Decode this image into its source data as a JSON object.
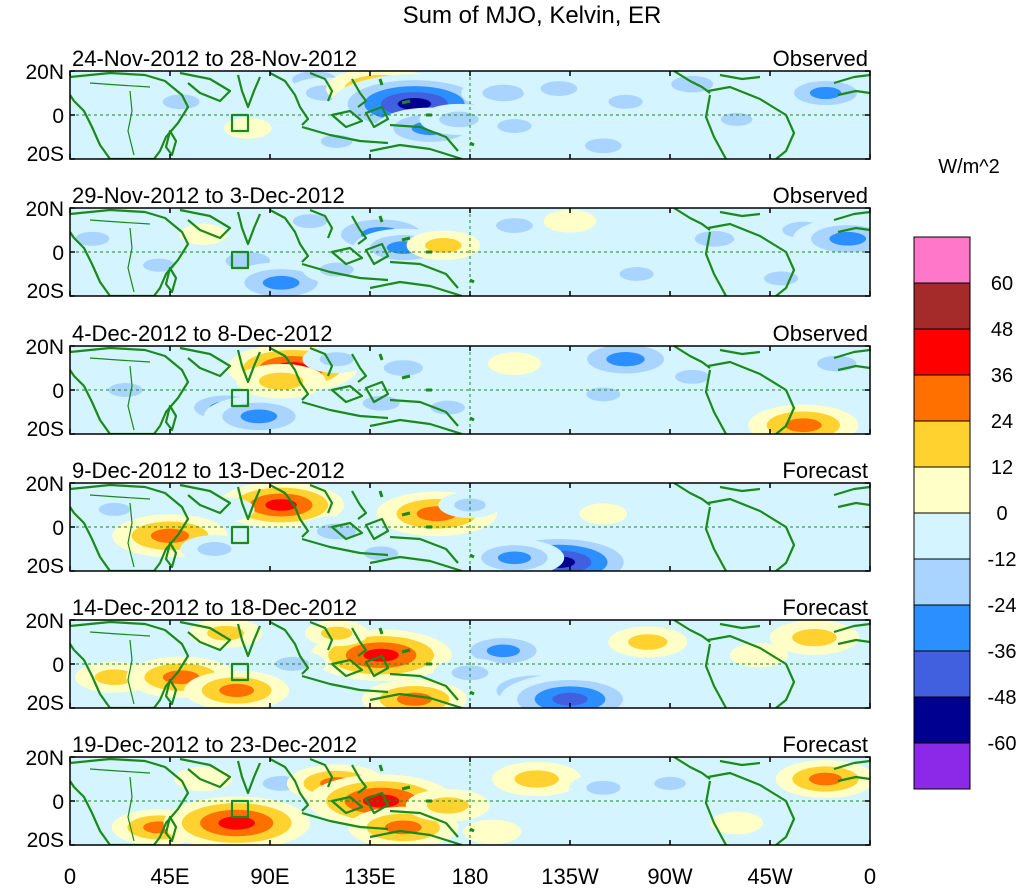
{
  "chart_data": {
    "type": "heatmap",
    "title": "Sum of MJO, Kelvin, ER",
    "units_label": "W/m^2",
    "panels": [
      {
        "period": "24-Nov-2012 to 28-Nov-2012",
        "kind": "Observed"
      },
      {
        "period": "29-Nov-2012 to 3-Dec-2012",
        "kind": "Observed"
      },
      {
        "period": "4-Dec-2012 to 8-Dec-2012",
        "kind": "Observed"
      },
      {
        "period": "9-Dec-2012 to 13-Dec-2012",
        "kind": "Forecast"
      },
      {
        "period": "14-Dec-2012 to 18-Dec-2012",
        "kind": "Forecast"
      },
      {
        "period": "19-Dec-2012 to 23-Dec-2012",
        "kind": "Forecast"
      }
    ],
    "x_ticks": [
      {
        "lon": 0,
        "label": "0"
      },
      {
        "lon": 45,
        "label": "45E"
      },
      {
        "lon": 90,
        "label": "90E"
      },
      {
        "lon": 135,
        "label": "135E"
      },
      {
        "lon": 180,
        "label": "180"
      },
      {
        "lon": 225,
        "label": "135W"
      },
      {
        "lon": 270,
        "label": "90W"
      },
      {
        "lon": 315,
        "label": "45W"
      },
      {
        "lon": 360,
        "label": "0"
      }
    ],
    "y_ticks": [
      {
        "lat": 20,
        "label": "20N"
      },
      {
        "lat": 0,
        "label": "0"
      },
      {
        "lat": -20,
        "label": "20S"
      }
    ],
    "lon_range": [
      0,
      360
    ],
    "lat_range": [
      -20,
      20
    ],
    "colorbar": {
      "labels": [
        "60",
        "48",
        "36",
        "24",
        "12",
        "0",
        "-12",
        "-24",
        "-36",
        "-48",
        "-60"
      ],
      "colors": [
        "#ff77c8",
        "#a52a2a",
        "#ff0000",
        "#ff7000",
        "#ffd230",
        "#ffffc8",
        "#d4f4ff",
        "#a8d4ff",
        "#2b8fff",
        "#4060e0",
        "#000090",
        "#8c28e8"
      ]
    },
    "fields": [
      [
        {
          "lon": 30,
          "lat": 2,
          "v": -8
        },
        {
          "lon": 50,
          "lat": 6,
          "v": -16
        },
        {
          "lon": 110,
          "lat": 16,
          "v": -22
        },
        {
          "lon": 115,
          "lat": 10,
          "v": -18
        },
        {
          "lon": 140,
          "lat": 12,
          "v": 30
        },
        {
          "lon": 155,
          "lat": 5,
          "v": -52
        },
        {
          "lon": 162,
          "lat": -6,
          "v": -30
        },
        {
          "lon": 175,
          "lat": -2,
          "v": -18
        },
        {
          "lon": 195,
          "lat": 10,
          "v": -20
        },
        {
          "lon": 220,
          "lat": 12,
          "v": -16
        },
        {
          "lon": 250,
          "lat": 6,
          "v": -14
        },
        {
          "lon": 280,
          "lat": 14,
          "v": -20
        },
        {
          "lon": 340,
          "lat": 10,
          "v": -24
        },
        {
          "lon": 80,
          "lat": -6,
          "v": 6
        },
        {
          "lon": 200,
          "lat": -5,
          "v": -14
        },
        {
          "lon": 60,
          "lat": -12,
          "v": -10
        },
        {
          "lon": 240,
          "lat": -14,
          "v": -16
        },
        {
          "lon": 300,
          "lat": -2,
          "v": -12
        },
        {
          "lon": 120,
          "lat": -12,
          "v": -12
        }
      ],
      [
        {
          "lon": 10,
          "lat": 6,
          "v": -14
        },
        {
          "lon": 40,
          "lat": -6,
          "v": -12
        },
        {
          "lon": 80,
          "lat": -4,
          "v": -22
        },
        {
          "lon": 95,
          "lat": -14,
          "v": -30
        },
        {
          "lon": 108,
          "lat": 14,
          "v": -14
        },
        {
          "lon": 140,
          "lat": 8,
          "v": -34
        },
        {
          "lon": 150,
          "lat": 2,
          "v": -26
        },
        {
          "lon": 168,
          "lat": 3,
          "v": 16
        },
        {
          "lon": 200,
          "lat": 12,
          "v": -16
        },
        {
          "lon": 225,
          "lat": 14,
          "v": 8
        },
        {
          "lon": 255,
          "lat": -10,
          "v": -14
        },
        {
          "lon": 290,
          "lat": 6,
          "v": -18
        },
        {
          "lon": 330,
          "lat": 10,
          "v": -20
        },
        {
          "lon": 350,
          "lat": 6,
          "v": -30
        },
        {
          "lon": 320,
          "lat": -12,
          "v": -14
        },
        {
          "lon": 120,
          "lat": -8,
          "v": -14
        },
        {
          "lon": 60,
          "lat": 8,
          "v": 6
        },
        {
          "lon": 180,
          "lat": -12,
          "v": -10
        }
      ],
      [
        {
          "lon": 25,
          "lat": 0,
          "v": -14
        },
        {
          "lon": 70,
          "lat": -8,
          "v": -24
        },
        {
          "lon": 85,
          "lat": -12,
          "v": -30
        },
        {
          "lon": 100,
          "lat": 10,
          "v": 38
        },
        {
          "lon": 95,
          "lat": 4,
          "v": 22
        },
        {
          "lon": 120,
          "lat": 14,
          "v": -14
        },
        {
          "lon": 150,
          "lat": 10,
          "v": -18
        },
        {
          "lon": 140,
          "lat": -6,
          "v": -16
        },
        {
          "lon": 200,
          "lat": 12,
          "v": 8
        },
        {
          "lon": 250,
          "lat": 14,
          "v": -32
        },
        {
          "lon": 240,
          "lat": -2,
          "v": -14
        },
        {
          "lon": 330,
          "lat": -16,
          "v": 30
        },
        {
          "lon": 345,
          "lat": 12,
          "v": -18
        },
        {
          "lon": 170,
          "lat": -8,
          "v": -14
        },
        {
          "lon": 280,
          "lat": 6,
          "v": -14
        },
        {
          "lon": 50,
          "lat": 6,
          "v": -10
        }
      ],
      [
        {
          "lon": 45,
          "lat": -4,
          "v": 32
        },
        {
          "lon": 65,
          "lat": -10,
          "v": -14
        },
        {
          "lon": 95,
          "lat": 10,
          "v": 36
        },
        {
          "lon": 120,
          "lat": -2,
          "v": -18
        },
        {
          "lon": 140,
          "lat": -12,
          "v": -14
        },
        {
          "lon": 165,
          "lat": 6,
          "v": 34
        },
        {
          "lon": 220,
          "lat": -16,
          "v": -50
        },
        {
          "lon": 200,
          "lat": -14,
          "v": -26
        },
        {
          "lon": 180,
          "lat": 10,
          "v": -12
        },
        {
          "lon": 260,
          "lat": 10,
          "v": -10
        },
        {
          "lon": 300,
          "lat": -2,
          "v": -10
        },
        {
          "lon": 20,
          "lat": 8,
          "v": -12
        },
        {
          "lon": 70,
          "lat": 8,
          "v": -10
        },
        {
          "lon": 240,
          "lat": 6,
          "v": 6
        }
      ],
      [
        {
          "lon": 20,
          "lat": -6,
          "v": 18
        },
        {
          "lon": 50,
          "lat": -6,
          "v": 30
        },
        {
          "lon": 75,
          "lat": -12,
          "v": 28
        },
        {
          "lon": 70,
          "lat": 14,
          "v": 16
        },
        {
          "lon": 140,
          "lat": 4,
          "v": 42
        },
        {
          "lon": 155,
          "lat": -16,
          "v": 28
        },
        {
          "lon": 120,
          "lat": 14,
          "v": 12
        },
        {
          "lon": 195,
          "lat": 6,
          "v": -26
        },
        {
          "lon": 210,
          "lat": -12,
          "v": -34
        },
        {
          "lon": 225,
          "lat": -16,
          "v": -42
        },
        {
          "lon": 260,
          "lat": 10,
          "v": 18
        },
        {
          "lon": 310,
          "lat": 4,
          "v": 10
        },
        {
          "lon": 335,
          "lat": 12,
          "v": 22
        },
        {
          "lon": 100,
          "lat": 0,
          "v": -14
        },
        {
          "lon": 180,
          "lat": -4,
          "v": -16
        }
      ],
      [
        {
          "lon": 40,
          "lat": -12,
          "v": 24
        },
        {
          "lon": 75,
          "lat": -10,
          "v": 44
        },
        {
          "lon": 95,
          "lat": 8,
          "v": -16
        },
        {
          "lon": 120,
          "lat": 8,
          "v": 26
        },
        {
          "lon": 140,
          "lat": 0,
          "v": 44
        },
        {
          "lon": 150,
          "lat": -12,
          "v": 30
        },
        {
          "lon": 170,
          "lat": -2,
          "v": 20
        },
        {
          "lon": 210,
          "lat": 10,
          "v": 22
        },
        {
          "lon": 240,
          "lat": 6,
          "v": -14
        },
        {
          "lon": 270,
          "lat": 8,
          "v": -12
        },
        {
          "lon": 340,
          "lat": 10,
          "v": 26
        },
        {
          "lon": 300,
          "lat": -10,
          "v": 8
        },
        {
          "lon": 60,
          "lat": 10,
          "v": 10
        },
        {
          "lon": 20,
          "lat": 2,
          "v": -10
        },
        {
          "lon": 190,
          "lat": -14,
          "v": 10
        }
      ]
    ]
  }
}
